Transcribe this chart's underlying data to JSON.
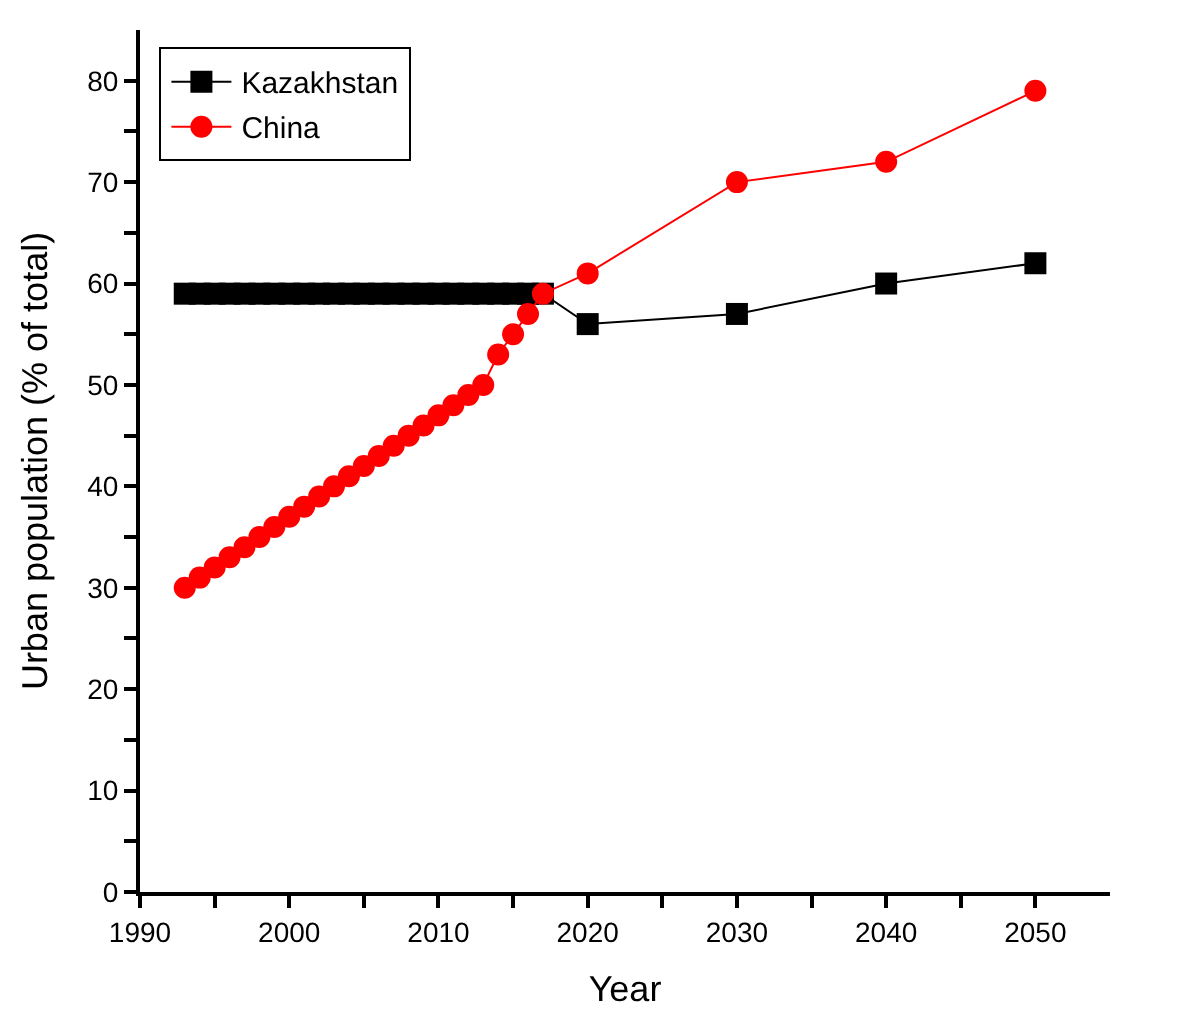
{
  "chart_data": {
    "type": "line",
    "xlabel": "Year",
    "ylabel": "Urban population (% of total)",
    "series": [
      {
        "name": "Kazakhstan",
        "color": "#000000",
        "marker": "square",
        "x": [
          1993,
          1994,
          1995,
          1996,
          1997,
          1998,
          1999,
          2000,
          2001,
          2002,
          2003,
          2004,
          2005,
          2006,
          2007,
          2008,
          2009,
          2010,
          2011,
          2012,
          2013,
          2014,
          2015,
          2016,
          2017,
          2020,
          2030,
          2040,
          2050
        ],
        "values": [
          59,
          59,
          59,
          59,
          59,
          59,
          59,
          59,
          59,
          59,
          59,
          59,
          59,
          59,
          59,
          59,
          59,
          59,
          59,
          59,
          59,
          59,
          59,
          59,
          59,
          56,
          57,
          60,
          62
        ]
      },
      {
        "name": "China",
        "color": "#ff0000",
        "marker": "circle",
        "x": [
          1993,
          1994,
          1995,
          1996,
          1997,
          1998,
          1999,
          2000,
          2001,
          2002,
          2003,
          2004,
          2005,
          2006,
          2007,
          2008,
          2009,
          2010,
          2011,
          2012,
          2013,
          2014,
          2015,
          2016,
          2017,
          2020,
          2030,
          2040,
          2050
        ],
        "values": [
          30,
          31,
          32,
          33,
          34,
          35,
          36,
          37,
          38,
          39,
          40,
          41,
          42,
          43,
          44,
          45,
          46,
          47,
          48,
          49,
          50,
          53,
          55,
          57,
          59,
          61,
          70,
          72,
          79
        ]
      }
    ],
    "xlim": [
      1990,
      2055
    ],
    "xticks": [
      1990,
      {
        "value": 1995,
        "label": null
      },
      2000,
      {
        "value": 2005,
        "label": null
      },
      2010,
      {
        "value": 2015,
        "label": null
      },
      2020,
      {
        "value": 2025,
        "label": null
      },
      2030,
      {
        "value": 2035,
        "label": null
      },
      2040,
      {
        "value": 2045,
        "label": null
      },
      2050
    ],
    "ylim": [
      0,
      85
    ],
    "yticks": [
      0,
      {
        "value": 5,
        "label": null
      },
      10,
      {
        "value": 15,
        "label": null
      },
      20,
      {
        "value": 25,
        "label": null
      },
      30,
      {
        "value": 35,
        "label": null
      },
      40,
      {
        "value": 45,
        "label": null
      },
      50,
      {
        "value": 55,
        "label": null
      },
      60,
      {
        "value": 65,
        "label": null
      },
      70,
      {
        "value": 75,
        "label": null
      },
      80
    ],
    "legend": "top left",
    "line_style": "solid"
  }
}
